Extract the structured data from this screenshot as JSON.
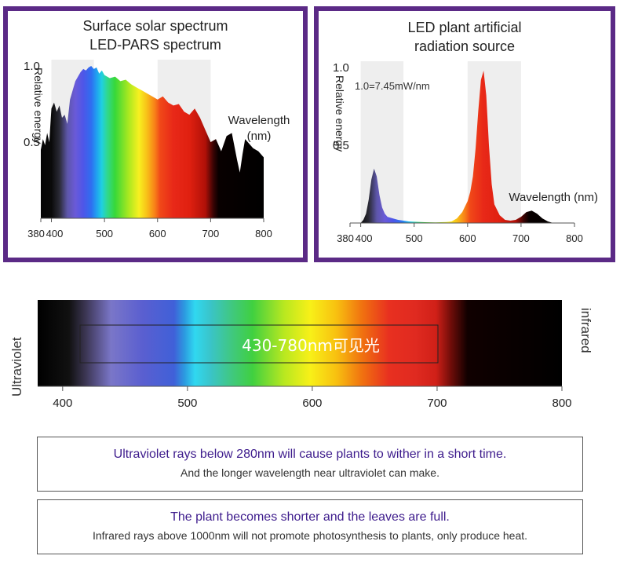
{
  "solar_panel": {
    "title_line1": "Surface solar spectrum",
    "title_line2": "LED-PARS spectrum",
    "y_axis_label": "Relative energy",
    "x_axis_label_line1": "Wavelength",
    "x_axis_label_line2": "(nm)"
  },
  "led_panel": {
    "title_line1": "LED plant artificial",
    "title_line2": "radiation source",
    "y_axis_label": "Relative energy",
    "x_axis_label": "Wavelength (nm)",
    "note": "1.0=7.45mW/nm"
  },
  "band": {
    "left_label": "Ultraviolet",
    "right_label": "infrared",
    "visible_range_label": "430-780nm可见光",
    "ticks": [
      "400",
      "500",
      "600",
      "700",
      "800"
    ]
  },
  "info": {
    "box1_main": "Ultraviolet rays below 280nm will cause plants to wither in a short time.",
    "box1_sub": "And the longer wavelength near ultraviolet can make.",
    "box2_main": "The plant becomes shorter and the leaves are full.",
    "box2_sub": "Infrared rays above 1000nm will not promote photosynthesis to plants, only produce heat."
  },
  "chart_data": [
    {
      "type": "area",
      "name": "solar",
      "x_ticks": [
        "380",
        "400",
        "500",
        "600",
        "700",
        "800"
      ],
      "y_ticks": [
        "0.5",
        "1.0"
      ],
      "xlim": [
        380,
        800
      ],
      "ylim": [
        0,
        1.0
      ],
      "x": [
        380,
        384,
        388,
        392,
        396,
        400,
        405,
        410,
        415,
        420,
        425,
        430,
        435,
        440,
        445,
        450,
        455,
        460,
        465,
        470,
        475,
        480,
        485,
        490,
        495,
        500,
        510,
        520,
        530,
        540,
        550,
        560,
        570,
        580,
        590,
        600,
        610,
        620,
        630,
        640,
        650,
        660,
        670,
        680,
        690,
        700,
        710,
        720,
        730,
        740,
        750,
        755,
        760,
        765,
        770,
        775,
        780,
        790,
        800
      ],
      "y": [
        0.45,
        0.52,
        0.48,
        0.56,
        0.5,
        0.72,
        0.76,
        0.7,
        0.74,
        0.66,
        0.68,
        0.62,
        0.78,
        0.84,
        0.9,
        0.93,
        0.96,
        0.98,
        0.97,
        0.99,
        1.0,
        0.98,
        0.99,
        0.95,
        0.97,
        0.94,
        0.92,
        0.93,
        0.9,
        0.91,
        0.88,
        0.86,
        0.84,
        0.82,
        0.8,
        0.78,
        0.8,
        0.76,
        0.74,
        0.75,
        0.7,
        0.68,
        0.72,
        0.66,
        0.58,
        0.5,
        0.52,
        0.44,
        0.54,
        0.56,
        0.38,
        0.3,
        0.42,
        0.52,
        0.5,
        0.48,
        0.46,
        0.44,
        0.4
      ]
    },
    {
      "type": "area",
      "name": "led",
      "x_ticks": [
        "380",
        "400",
        "500",
        "600",
        "700",
        "800"
      ],
      "y_ticks": [
        "0.5",
        "1.0"
      ],
      "xlim": [
        380,
        800
      ],
      "ylim": [
        0,
        1.0
      ],
      "x": [
        400,
        405,
        410,
        415,
        420,
        425,
        430,
        435,
        440,
        445,
        450,
        460,
        470,
        480,
        490,
        500,
        520,
        540,
        560,
        570,
        580,
        590,
        600,
        605,
        610,
        615,
        620,
        625,
        630,
        635,
        640,
        645,
        650,
        660,
        670,
        680,
        690,
        700,
        710,
        720,
        730,
        740,
        750,
        760
      ],
      "y": [
        0.0,
        0.02,
        0.06,
        0.15,
        0.28,
        0.35,
        0.3,
        0.18,
        0.1,
        0.06,
        0.04,
        0.03,
        0.02,
        0.015,
        0.01,
        0.008,
        0.005,
        0.004,
        0.006,
        0.01,
        0.03,
        0.07,
        0.14,
        0.2,
        0.3,
        0.48,
        0.72,
        0.92,
        0.98,
        0.82,
        0.5,
        0.25,
        0.12,
        0.05,
        0.02,
        0.015,
        0.02,
        0.04,
        0.07,
        0.08,
        0.06,
        0.03,
        0.01,
        0.0
      ]
    }
  ]
}
